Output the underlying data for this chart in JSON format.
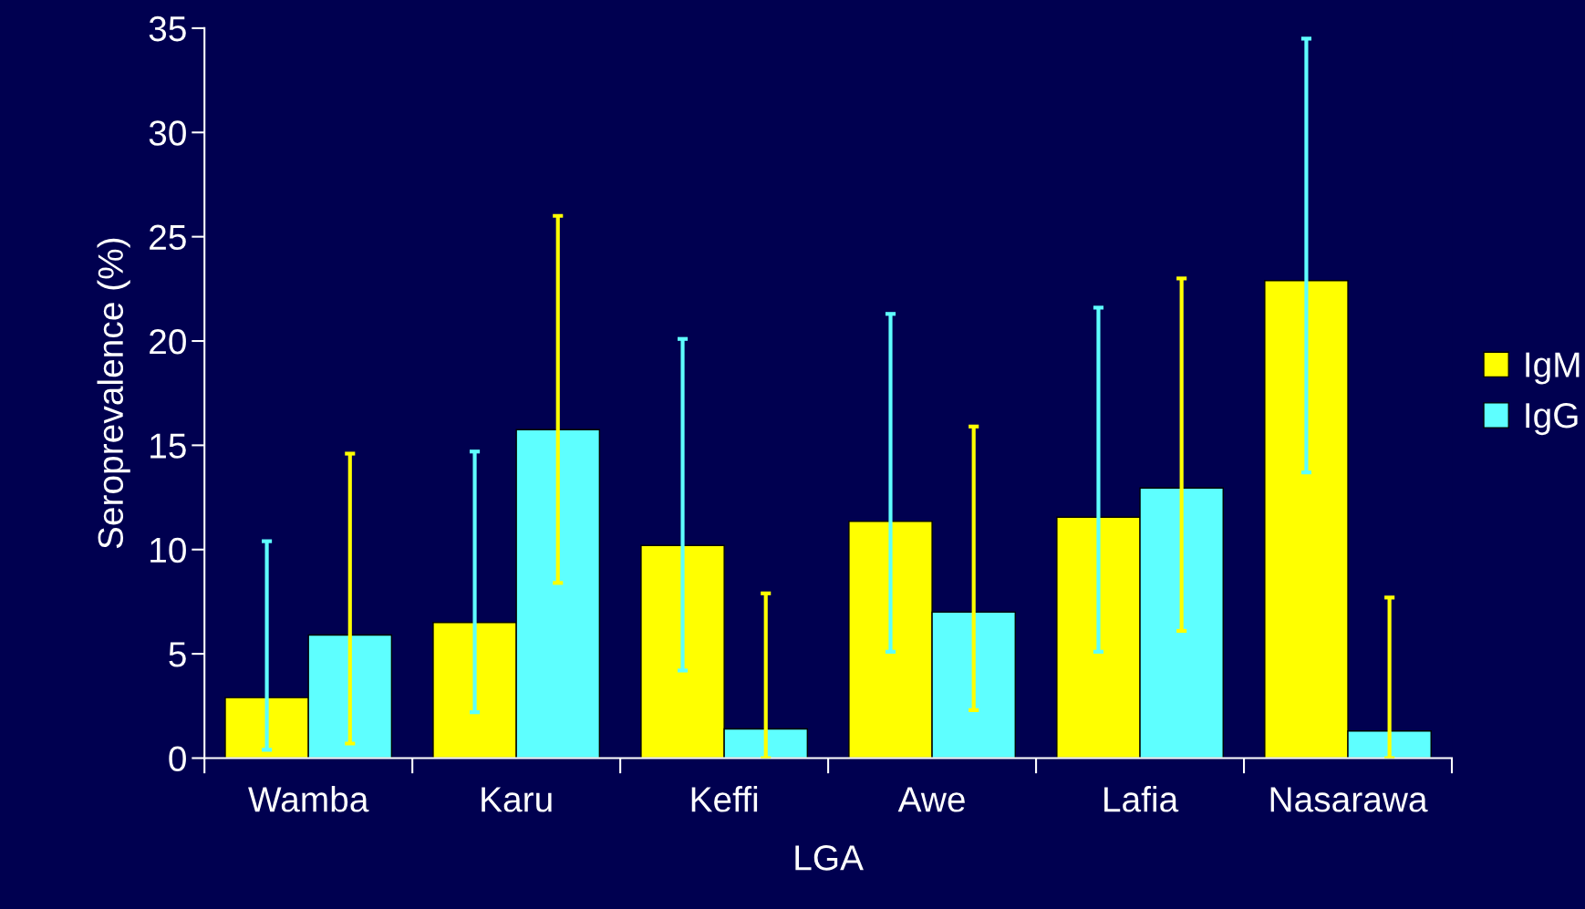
{
  "chart_data": {
    "type": "bar",
    "xlabel": "LGA",
    "ylabel": "Seroprevalence (%)",
    "categories": [
      "Wamba",
      "Karu",
      "Keffi",
      "Awe",
      "Lafia",
      "Nasarawa"
    ],
    "series": [
      {
        "name": "IgM",
        "color": "#ffff00",
        "values": [
          2.9,
          6.5,
          10.2,
          11.35,
          11.55,
          22.9
        ],
        "errors": [
          [
            0.4,
            10.4
          ],
          [
            2.2,
            14.7
          ],
          [
            4.2,
            20.1
          ],
          [
            5.1,
            21.3
          ],
          [
            5.1,
            21.6
          ],
          [
            13.7,
            34.5
          ]
        ]
      },
      {
        "name": "IgG",
        "color": "#5effff",
        "values": [
          5.9,
          15.75,
          1.4,
          7.0,
          12.95,
          1.3
        ],
        "errors": [
          [
            0.7,
            14.6
          ],
          [
            8.4,
            26.0
          ],
          [
            0,
            7.9
          ],
          [
            2.3,
            15.9
          ],
          [
            6.1,
            23.0
          ],
          [
            0,
            7.7
          ]
        ]
      }
    ],
    "ylim": [
      0,
      35
    ],
    "yticks": [
      0,
      5,
      10,
      15,
      20,
      25,
      30,
      35
    ],
    "grid": false,
    "legend": "right"
  }
}
